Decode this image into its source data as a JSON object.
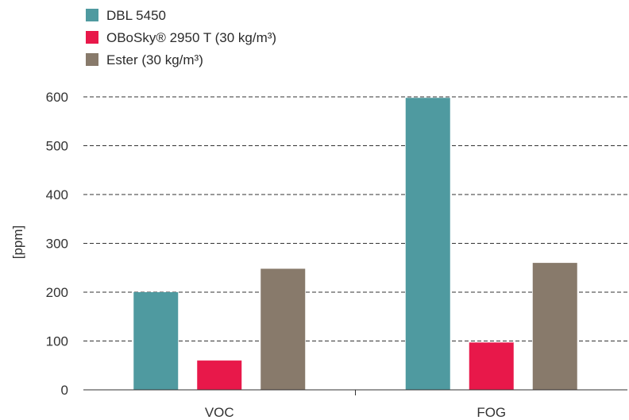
{
  "chart_data": {
    "type": "bar",
    "categories": [
      "VOC",
      "FOG"
    ],
    "series": [
      {
        "name": "DBL 5450",
        "values": [
          200,
          598
        ],
        "color": "#4f9aa0"
      },
      {
        "name": "OBoSky® 2950 T (30 kg/m³)",
        "values": [
          60,
          97
        ],
        "color": "#e8184a"
      },
      {
        "name": "Ester (30 kg/m³)",
        "values": [
          248,
          260
        ],
        "color": "#887a6b"
      }
    ],
    "title": "",
    "xlabel": "",
    "ylabel": "[ppm]",
    "ylim": [
      0,
      600
    ],
    "yticks": [
      0,
      100,
      200,
      300,
      400,
      500,
      600
    ],
    "grid": true,
    "legend_position": "top-left"
  }
}
